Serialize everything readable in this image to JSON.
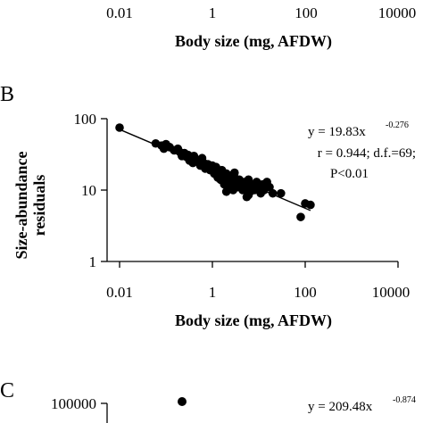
{
  "panel_a": {
    "x_tick_labels": [
      "0.01",
      "1",
      "100",
      "10000"
    ],
    "xlabel": "Body size (mg, AFDW)"
  },
  "panel_b": {
    "letter": "B",
    "y_tick_labels": [
      "1",
      "10",
      "100"
    ],
    "x_tick_labels": [
      "0.01",
      "1",
      "100",
      "10000"
    ],
    "xlabel": "Body size (mg, AFDW)",
    "ylabel_line1": "Size-abundance",
    "ylabel_line2": "residuals",
    "annotation": {
      "eq_base": "y = 19.83x",
      "eq_exp": "-0.276",
      "line2": "r = 0.944; d.f.=69;",
      "line3": "P<0.01"
    }
  },
  "panel_c": {
    "letter": "C",
    "y_tick_labels": [
      "100000"
    ],
    "annotation": {
      "eq_base": "y = 209.48x",
      "eq_exp": "-0.874"
    }
  },
  "chart_data": {
    "type": "scatter",
    "xlabel": "Body size (mg, AFDW)",
    "ylabel": "Size-abundance residuals",
    "x_scale": "log",
    "y_scale": "log",
    "xlim": [
      0.01,
      10000
    ],
    "ylim": [
      1,
      100
    ],
    "fit": {
      "intercept": 19.83,
      "exponent": -0.276,
      "x_range": [
        0.01,
        130
      ]
    },
    "points": [
      {
        "x": 0.01,
        "y": 75
      },
      {
        "x": 0.06,
        "y": 45
      },
      {
        "x": 0.08,
        "y": 42
      },
      {
        "x": 0.09,
        "y": 38
      },
      {
        "x": 0.1,
        "y": 44
      },
      {
        "x": 0.12,
        "y": 40
      },
      {
        "x": 0.15,
        "y": 36
      },
      {
        "x": 0.18,
        "y": 38
      },
      {
        "x": 0.2,
        "y": 34
      },
      {
        "x": 0.22,
        "y": 30
      },
      {
        "x": 0.25,
        "y": 33
      },
      {
        "x": 0.28,
        "y": 29
      },
      {
        "x": 0.3,
        "y": 31
      },
      {
        "x": 0.32,
        "y": 26
      },
      {
        "x": 0.35,
        "y": 28
      },
      {
        "x": 0.38,
        "y": 24
      },
      {
        "x": 0.4,
        "y": 30
      },
      {
        "x": 0.45,
        "y": 27
      },
      {
        "x": 0.5,
        "y": 25
      },
      {
        "x": 0.55,
        "y": 22
      },
      {
        "x": 0.6,
        "y": 28
      },
      {
        "x": 0.65,
        "y": 24
      },
      {
        "x": 0.7,
        "y": 20
      },
      {
        "x": 0.8,
        "y": 23
      },
      {
        "x": 0.9,
        "y": 19
      },
      {
        "x": 1.0,
        "y": 22
      },
      {
        "x": 1.1,
        "y": 17
      },
      {
        "x": 1.2,
        "y": 21
      },
      {
        "x": 1.3,
        "y": 15
      },
      {
        "x": 1.4,
        "y": 18
      },
      {
        "x": 1.5,
        "y": 14
      },
      {
        "x": 1.6,
        "y": 19
      },
      {
        "x": 1.7,
        "y": 16
      },
      {
        "x": 1.8,
        "y": 12
      },
      {
        "x": 1.9,
        "y": 15
      },
      {
        "x": 2.0,
        "y": 17
      },
      {
        "x": 2.1,
        "y": 13
      },
      {
        "x": 2.2,
        "y": 11
      },
      {
        "x": 2.3,
        "y": 14
      },
      {
        "x": 2.5,
        "y": 16
      },
      {
        "x": 2.6,
        "y": 12
      },
      {
        "x": 2.8,
        "y": 10
      },
      {
        "x": 3.0,
        "y": 15
      },
      {
        "x": 3.2,
        "y": 13
      },
      {
        "x": 3.5,
        "y": 11
      },
      {
        "x": 3.8,
        "y": 14
      },
      {
        "x": 4.0,
        "y": 12
      },
      {
        "x": 4.5,
        "y": 10
      },
      {
        "x": 5.0,
        "y": 13
      },
      {
        "x": 5.5,
        "y": 11
      },
      {
        "x": 6.0,
        "y": 14
      },
      {
        "x": 6.5,
        "y": 9.5
      },
      {
        "x": 7.0,
        "y": 12
      },
      {
        "x": 8.0,
        "y": 10
      },
      {
        "x": 9.0,
        "y": 13
      },
      {
        "x": 10.0,
        "y": 11
      },
      {
        "x": 11.0,
        "y": 9
      },
      {
        "x": 12.0,
        "y": 12
      },
      {
        "x": 13.0,
        "y": 10
      },
      {
        "x": 15.0,
        "y": 13
      },
      {
        "x": 17.0,
        "y": 11
      },
      {
        "x": 20.0,
        "y": 9
      },
      {
        "x": 5.5,
        "y": 8
      },
      {
        "x": 6.0,
        "y": 8.5
      },
      {
        "x": 3.0,
        "y": 17.5
      },
      {
        "x": 2.0,
        "y": 9.5
      },
      {
        "x": 1.5,
        "y": 16
      },
      {
        "x": 30.0,
        "y": 9
      },
      {
        "x": 80.0,
        "y": 4.2
      },
      {
        "x": 100.0,
        "y": 6.5
      },
      {
        "x": 130.0,
        "y": 6.2
      }
    ]
  }
}
